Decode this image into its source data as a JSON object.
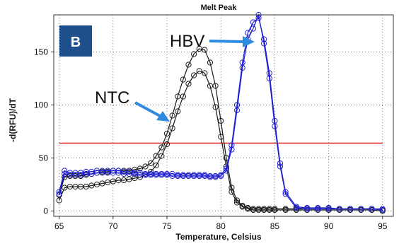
{
  "chart_data": {
    "type": "line",
    "title": "Melt Peak",
    "xlabel": "Temperature, Celsius",
    "ylabel": "-d(RFU)/dT",
    "xlim": [
      64.5,
      96
    ],
    "ylim": [
      -5,
      185
    ],
    "xticks": [
      65,
      70,
      75,
      80,
      85,
      90,
      95
    ],
    "yticks": [
      0,
      50,
      100,
      150
    ],
    "grid": true,
    "threshold": {
      "y": 64,
      "color": "#e02020"
    },
    "colors": {
      "ntc": "#1a1a1a",
      "hbv": "#1f1fd0",
      "badge": "#1f4e8c",
      "arrow": "#2f8be0"
    },
    "annotations": {
      "panel_label": "B",
      "ntc_label": "NTC",
      "hbv_label": "HBV"
    },
    "series": [
      {
        "group": "ntc",
        "x": [
          65,
          65.5,
          66,
          66.5,
          67,
          67.5,
          68,
          68.5,
          69,
          69.5,
          70,
          70.5,
          71,
          71.5,
          72,
          72.5,
          73,
          73.5,
          74,
          74.5,
          75,
          75.5,
          76,
          76.5,
          77,
          77.5,
          78,
          78.5,
          79,
          79.5,
          80,
          80.5,
          81,
          81.5,
          82,
          82.5,
          83,
          83.5,
          84,
          84.5,
          85,
          86,
          87,
          88,
          89,
          90,
          91,
          92,
          93,
          94,
          95
        ],
        "y": [
          15,
          32,
          33,
          33,
          33,
          34,
          35,
          36,
          37,
          37,
          38,
          38,
          38,
          38,
          39,
          40,
          42,
          45,
          52,
          60,
          73,
          90,
          108,
          124,
          138,
          148,
          153,
          152,
          140,
          118,
          85,
          50,
          22,
          10,
          5,
          3,
          2,
          2,
          2,
          2,
          2,
          2,
          2,
          2,
          2,
          2,
          2,
          2,
          2,
          2,
          1
        ]
      },
      {
        "group": "ntc",
        "x": [
          65,
          65.5,
          66,
          66.5,
          67,
          67.5,
          68,
          68.5,
          69,
          69.5,
          70,
          70.5,
          71,
          71.5,
          72,
          72.5,
          73,
          73.5,
          74,
          74.5,
          75,
          75.5,
          76,
          76.5,
          77,
          77.5,
          78,
          78.5,
          79,
          79.5,
          80,
          80.5,
          81,
          81.5,
          82,
          82.5,
          83,
          83.5,
          84,
          84.5,
          85,
          86,
          87,
          88,
          89,
          90,
          91,
          92,
          93,
          94,
          95
        ],
        "y": [
          10,
          22,
          23,
          23,
          23,
          23,
          24,
          25,
          26,
          27,
          28,
          29,
          29,
          30,
          31,
          32,
          34,
          37,
          43,
          52,
          63,
          78,
          94,
          108,
          120,
          128,
          132,
          130,
          118,
          98,
          70,
          42,
          18,
          8,
          4,
          2,
          1,
          1,
          1,
          1,
          1,
          1,
          1,
          1,
          1,
          1,
          1,
          1,
          1,
          1,
          0
        ]
      },
      {
        "group": "hbv",
        "x": [
          65,
          65.5,
          66,
          66.5,
          67,
          67.5,
          68,
          68.5,
          69,
          69.5,
          70,
          70.5,
          71,
          71.5,
          72,
          72.5,
          73,
          73.5,
          74,
          74.5,
          75,
          75.5,
          76,
          76.5,
          77,
          77.5,
          78,
          78.5,
          79,
          79.5,
          80,
          80.5,
          81,
          81.5,
          82,
          82.5,
          83,
          83.5,
          84,
          84.5,
          85,
          85.5,
          86,
          87,
          88,
          89,
          90,
          91,
          92,
          93,
          94,
          95
        ],
        "y": [
          18,
          38,
          36,
          36,
          36,
          37,
          37,
          38,
          38,
          38,
          38,
          38,
          37,
          37,
          36,
          36,
          35,
          35,
          35,
          35,
          35,
          35,
          34,
          34,
          34,
          34,
          34,
          34,
          33,
          33,
          34,
          40,
          62,
          100,
          140,
          168,
          178,
          182,
          162,
          130,
          85,
          45,
          18,
          4,
          3,
          3,
          3,
          2,
          2,
          2,
          2,
          2
        ]
      },
      {
        "group": "hbv",
        "x": [
          65,
          65.5,
          66,
          66.5,
          67,
          67.5,
          68,
          68.5,
          69,
          69.5,
          70,
          70.5,
          71,
          71.5,
          72,
          72.5,
          73,
          73.5,
          74,
          74.5,
          75,
          75.5,
          76,
          76.5,
          77,
          77.5,
          78,
          78.5,
          79,
          79.5,
          80,
          80.5,
          81,
          81.5,
          82,
          82.5,
          83,
          83.5,
          84,
          84.5,
          85,
          85.5,
          86,
          87,
          88,
          89,
          90,
          91,
          92,
          93,
          94,
          95
        ],
        "y": [
          16,
          35,
          34,
          34,
          34,
          35,
          35,
          36,
          36,
          36,
          36,
          36,
          35,
          35,
          35,
          34,
          34,
          34,
          34,
          34,
          34,
          33,
          33,
          33,
          33,
          33,
          33,
          33,
          32,
          32,
          33,
          38,
          58,
          95,
          135,
          162,
          172,
          185,
          158,
          125,
          80,
          42,
          16,
          3,
          2,
          2,
          2,
          2,
          2,
          2,
          2,
          1
        ]
      }
    ]
  }
}
